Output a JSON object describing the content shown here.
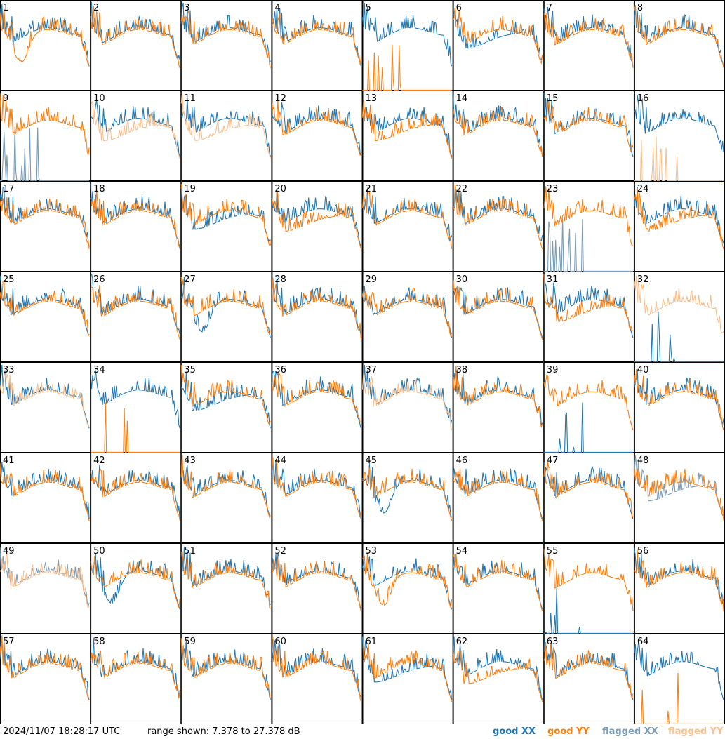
{
  "footer": {
    "timestamp": "2024/11/07 18:28:17 UTC",
    "range_text": "range shown: 7.378 to 27.378 dB"
  },
  "legend": {
    "good_xx": "good XX",
    "good_yy": "good YY",
    "flagged_xx": "flagged XX",
    "flagged_yy": "flagged YY"
  },
  "colors": {
    "good_xx": "#1f77b4",
    "good_yy": "#ff7f0e",
    "flagged_xx": "#7a9bb5",
    "flagged_yy": "#f9c08e",
    "grid": "#000000"
  },
  "chart_data": {
    "type": "line",
    "layout": "8x8 grid of per-tile spectra",
    "y_range_db": [
      7.378,
      27.378
    ],
    "tiles": [
      {
        "id": "1",
        "xx": "good",
        "yy": "good",
        "xx_shape": "normal",
        "yy_shape": "dip"
      },
      {
        "id": "2",
        "xx": "good",
        "yy": "good"
      },
      {
        "id": "3",
        "xx": "good",
        "yy": "good"
      },
      {
        "id": "4",
        "xx": "good",
        "yy": "good"
      },
      {
        "id": "5",
        "xx": "good",
        "yy": "good",
        "yy_shape": "dead"
      },
      {
        "id": "6",
        "xx": "good",
        "yy": "good",
        "xx_shape": "low"
      },
      {
        "id": "7",
        "xx": "good",
        "yy": "good"
      },
      {
        "id": "8",
        "xx": "good",
        "yy": "good"
      },
      {
        "id": "9",
        "xx": "flagged",
        "yy": "good",
        "xx_shape": "dead"
      },
      {
        "id": "10",
        "xx": "good",
        "yy": "flagged",
        "yy_shape": "low"
      },
      {
        "id": "11",
        "xx": "good",
        "yy": "flagged",
        "yy_shape": "low"
      },
      {
        "id": "12",
        "xx": "good",
        "yy": "good"
      },
      {
        "id": "13",
        "xx": "good",
        "yy": "good",
        "yy_shape": "low"
      },
      {
        "id": "14",
        "xx": "good",
        "yy": "good"
      },
      {
        "id": "15",
        "xx": "good",
        "yy": "good"
      },
      {
        "id": "16",
        "xx": "good",
        "yy": "flagged",
        "yy_shape": "dead"
      },
      {
        "id": "17",
        "xx": "good",
        "yy": "good"
      },
      {
        "id": "18",
        "xx": "good",
        "yy": "good"
      },
      {
        "id": "19",
        "xx": "good",
        "yy": "good",
        "xx_shape": "low"
      },
      {
        "id": "20",
        "xx": "good",
        "yy": "good",
        "yy_shape": "low"
      },
      {
        "id": "21",
        "xx": "good",
        "yy": "good"
      },
      {
        "id": "22",
        "xx": "good",
        "yy": "good"
      },
      {
        "id": "23",
        "xx": "flagged",
        "yy": "good",
        "xx_shape": "dead"
      },
      {
        "id": "24",
        "xx": "good",
        "yy": "good",
        "yy_shape": "low"
      },
      {
        "id": "25",
        "xx": "good",
        "yy": "good"
      },
      {
        "id": "26",
        "xx": "good",
        "yy": "good"
      },
      {
        "id": "27",
        "xx": "good",
        "yy": "good",
        "xx_shape": "dip"
      },
      {
        "id": "28",
        "xx": "good",
        "yy": "good"
      },
      {
        "id": "29",
        "xx": "good",
        "yy": "good"
      },
      {
        "id": "30",
        "xx": "good",
        "yy": "good"
      },
      {
        "id": "31",
        "xx": "good",
        "yy": "good",
        "yy_shape": "low"
      },
      {
        "id": "32",
        "xx": "good",
        "yy": "flagged",
        "xx_shape": "dead"
      },
      {
        "id": "33",
        "xx": "good",
        "yy": "flagged"
      },
      {
        "id": "34",
        "xx": "good",
        "yy": "good",
        "yy_shape": "dead"
      },
      {
        "id": "35",
        "xx": "good",
        "yy": "good",
        "xx_shape": "low"
      },
      {
        "id": "36",
        "xx": "good",
        "yy": "good"
      },
      {
        "id": "37",
        "xx": "good",
        "yy": "flagged"
      },
      {
        "id": "38",
        "xx": "good",
        "yy": "good"
      },
      {
        "id": "39",
        "xx": "good",
        "yy": "good",
        "xx_shape": "dead"
      },
      {
        "id": "40",
        "xx": "good",
        "yy": "good"
      },
      {
        "id": "41",
        "xx": "good",
        "yy": "good"
      },
      {
        "id": "42",
        "xx": "good",
        "yy": "good"
      },
      {
        "id": "43",
        "xx": "good",
        "yy": "good"
      },
      {
        "id": "44",
        "xx": "good",
        "yy": "good"
      },
      {
        "id": "45",
        "xx": "good",
        "yy": "good",
        "xx_shape": "dip"
      },
      {
        "id": "46",
        "xx": "good",
        "yy": "good"
      },
      {
        "id": "47",
        "xx": "good",
        "yy": "good"
      },
      {
        "id": "48",
        "xx": "flagged",
        "yy": "good",
        "xx_shape": "low"
      },
      {
        "id": "49",
        "xx": "flagged",
        "yy": "flagged"
      },
      {
        "id": "50",
        "xx": "good",
        "yy": "good",
        "xx_shape": "dip"
      },
      {
        "id": "51",
        "xx": "good",
        "yy": "good"
      },
      {
        "id": "52",
        "xx": "good",
        "yy": "good"
      },
      {
        "id": "53",
        "xx": "good",
        "yy": "good",
        "yy_shape": "dip"
      },
      {
        "id": "54",
        "xx": "good",
        "yy": "good"
      },
      {
        "id": "55",
        "xx": "good",
        "yy": "good",
        "xx_shape": "dead"
      },
      {
        "id": "56",
        "xx": "good",
        "yy": "good"
      },
      {
        "id": "57",
        "xx": "good",
        "yy": "good"
      },
      {
        "id": "58",
        "xx": "good",
        "yy": "good"
      },
      {
        "id": "59",
        "xx": "good",
        "yy": "good"
      },
      {
        "id": "60",
        "xx": "good",
        "yy": "good"
      },
      {
        "id": "61",
        "xx": "good",
        "yy": "good",
        "xx_shape": "low"
      },
      {
        "id": "62",
        "xx": "good",
        "yy": "good",
        "yy_shape": "low"
      },
      {
        "id": "63",
        "xx": "good",
        "yy": "good"
      },
      {
        "id": "64",
        "xx": "good",
        "yy": "good",
        "yy_shape": "dead"
      }
    ]
  }
}
